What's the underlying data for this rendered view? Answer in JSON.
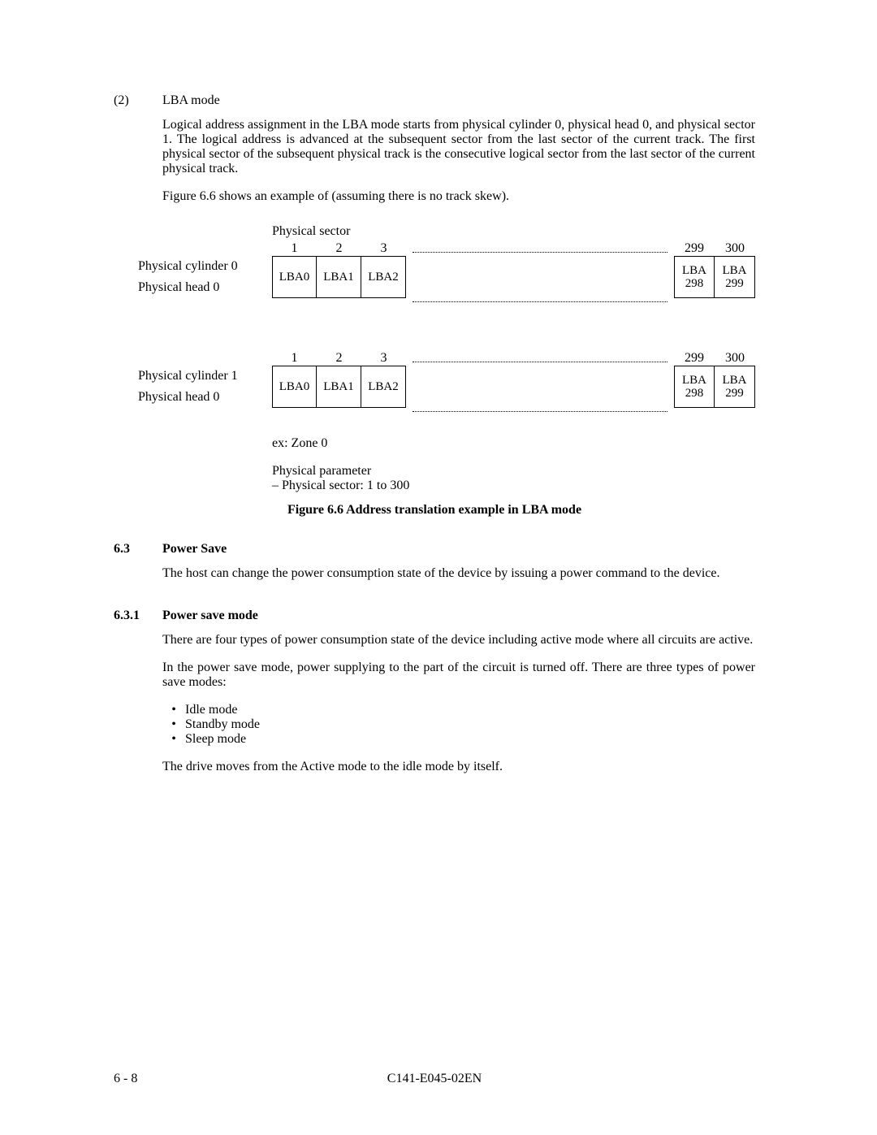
{
  "item2": {
    "num": "(2)",
    "label": "LBA mode",
    "para1": "Logical address assignment in the LBA mode starts from physical cylinder 0, physical head 0, and physical sector 1.  The logical address is advanced at the subsequent sector from the last sector of the current track.  The first physical sector of the subsequent physical track is the consecutive logical sector from the last sector of the current physical track.",
    "para2": "Figure 6.6 shows an example of (assuming there is no track skew)."
  },
  "diagram": {
    "phys_sector_label": "Physical sector",
    "left_headers": [
      "1",
      "2",
      "3"
    ],
    "right_headers": [
      "299",
      "300"
    ],
    "row0": {
      "labels": [
        "Physical cylinder 0",
        "Physical head 0"
      ],
      "left_cells": [
        "LBA0",
        "LBA1",
        "LBA2"
      ],
      "right_cells": [
        "LBA\n298",
        "LBA\n299"
      ]
    },
    "row1": {
      "labels": [
        "Physical cylinder 1",
        "Physical head 0"
      ],
      "left_cells": [
        "LBA0",
        "LBA1",
        "LBA2"
      ],
      "right_cells": [
        "LBA\n298",
        "LBA\n299"
      ]
    },
    "ex": "ex:  Zone 0",
    "pp1": "Physical parameter",
    "pp2": "– Physical sector:  1 to 300"
  },
  "figcap": "Figure 6.6    Address translation example in LBA mode",
  "s63": {
    "num": "6.3",
    "title": "Power Save",
    "para": "The host can change the power consumption state of the device by issuing a power command to the device."
  },
  "s631": {
    "num": "6.3.1",
    "title": "Power save mode",
    "para1": "There are four types of power consumption state of the device including active mode where all circuits are active.",
    "para2": "In the power save mode, power supplying to the part of the circuit is turned off.  There are three types of power save modes:",
    "bullets": [
      "Idle mode",
      "Standby mode",
      "Sleep mode"
    ],
    "para3": "The drive moves from the Active mode to the idle mode by itself."
  },
  "footer": {
    "left": "6 - 8",
    "center": "C141-E045-02EN"
  }
}
